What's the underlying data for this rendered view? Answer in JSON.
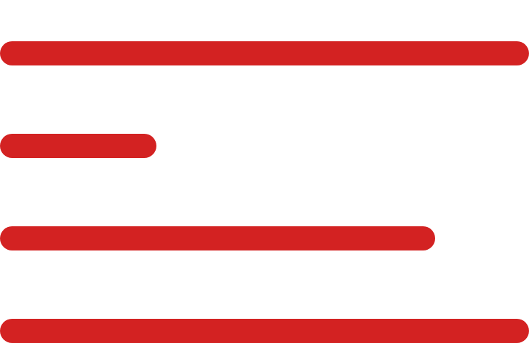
{
  "icon": "menu-left-align-icon",
  "colors": {
    "line": "#d32222",
    "background": "#ffffff"
  },
  "lines": [
    {
      "length_fraction": 1.0
    },
    {
      "length_fraction": 0.296
    },
    {
      "length_fraction": 0.823
    },
    {
      "length_fraction": 1.0
    }
  ]
}
